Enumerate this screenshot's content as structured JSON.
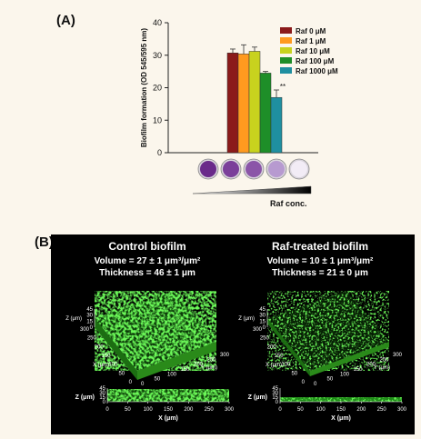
{
  "panel_a": {
    "label": "(A)",
    "chart_data": {
      "type": "bar",
      "ylabel": "Biofilm formation (OD 545/595 nm)",
      "ylim": [
        0,
        40
      ],
      "yticks": [
        0,
        10,
        20,
        30,
        40
      ],
      "categories": [
        "Raf 0 μM",
        "Raf 1 μM",
        "Raf 10 μM",
        "Raf 100 μM",
        "Raf 1000 μM"
      ],
      "values": [
        30.7,
        30.4,
        31.2,
        24.5,
        17.0
      ],
      "errors": [
        1.2,
        2.8,
        1.3,
        0.5,
        2.3
      ],
      "colors": [
        "#8b1a1a",
        "#ff9a1f",
        "#c8d21e",
        "#1e8e28",
        "#1f8fa0"
      ],
      "legend_position": "top-right",
      "annotation": "**",
      "concentration_label": "Raf conc."
    }
  },
  "panel_b": {
    "label": "(B)",
    "control": {
      "title": "Control biofilm",
      "volume": "Volume = 27 ± 1 μm³/μm²",
      "thickness": "Thickness = 46 ± 1 μm"
    },
    "treated": {
      "title": "Raf-treated biofilm",
      "volume": "Volume = 10 ± 1 μm³/μm²",
      "thickness": "Thickness = 21 ± 0 μm"
    },
    "axes": {
      "z_label": "Z (μm)",
      "x_label": "X (μm)",
      "y_label": "Y (μm)",
      "z_ticks": [
        "0",
        "15",
        "30",
        "45"
      ],
      "xy_ticks_3d": [
        "0",
        "50",
        "100",
        "150",
        "200",
        "250",
        "300"
      ],
      "x_ticks_side": [
        "0",
        "50",
        "100",
        "150",
        "200",
        "250",
        "300"
      ]
    }
  }
}
